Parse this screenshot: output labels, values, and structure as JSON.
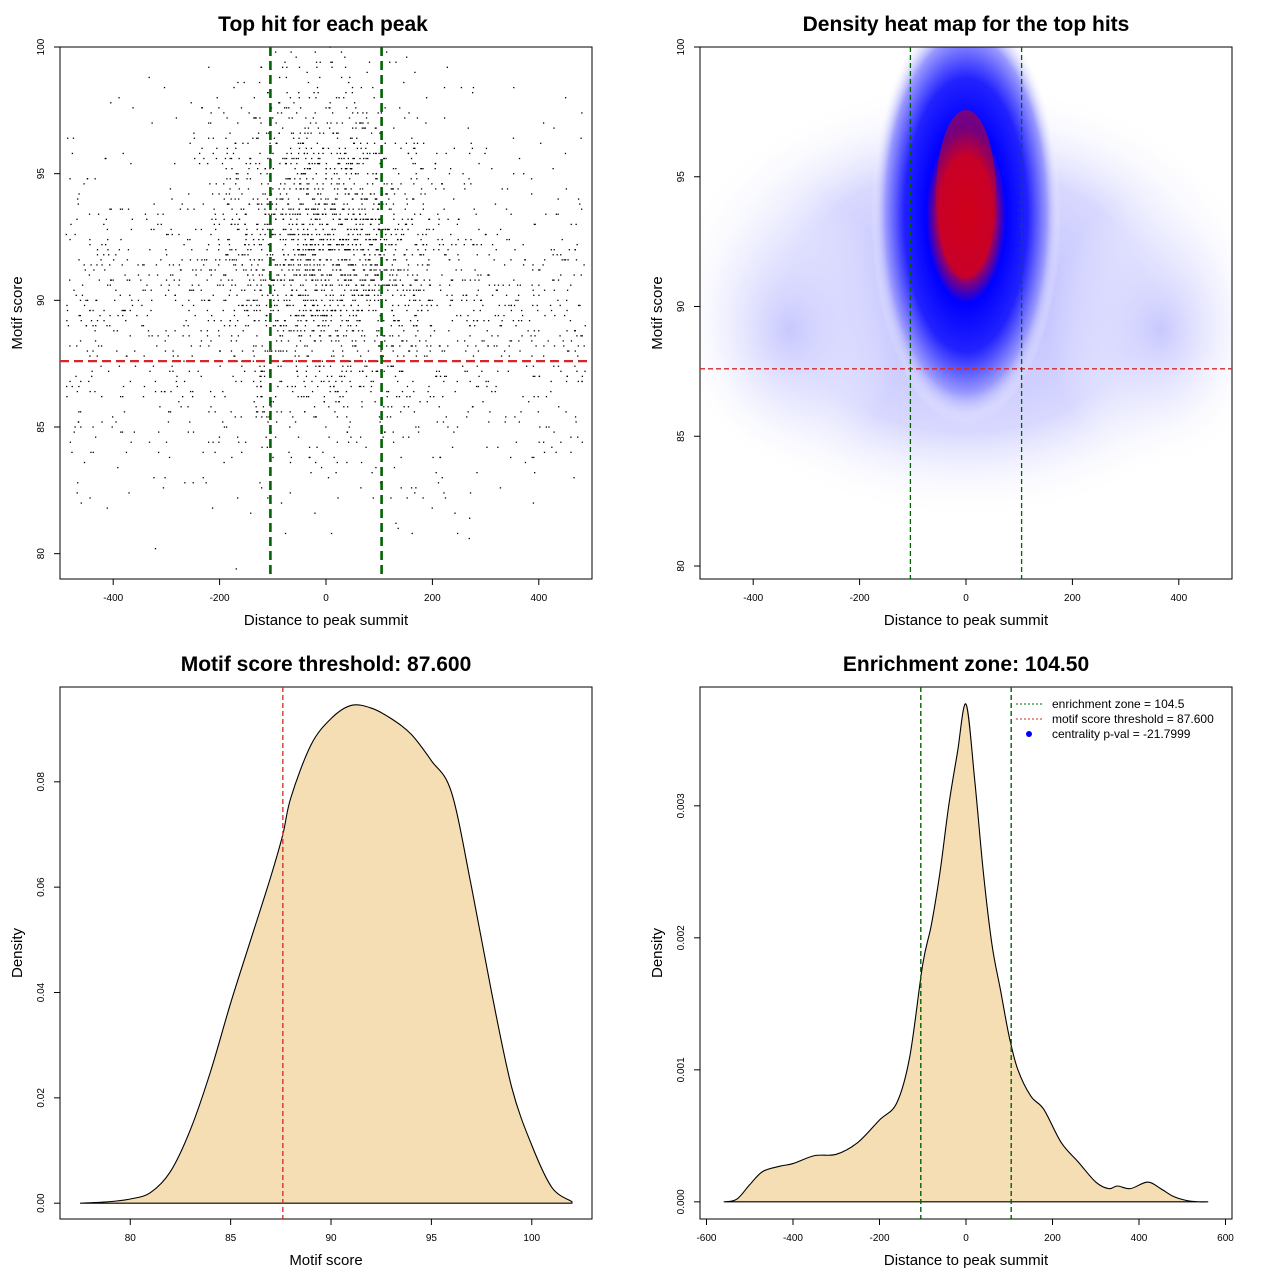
{
  "colors": {
    "points": "#000000",
    "threshold_line": "#d62728",
    "zone_line": "#006400",
    "density_fill": "#f5deb3",
    "heat_low": "#ffffff",
    "heat_mid": "#0000ff",
    "heat_high": "#cc0000",
    "legend_dot": "#0000ff"
  },
  "chart_data": [
    {
      "type": "scatter",
      "title": "Top hit for each peak",
      "xlabel": "Distance to peak summit",
      "ylabel": "Motif score",
      "xlim": [
        -500,
        500
      ],
      "ylim": [
        79,
        100
      ],
      "xticks": [
        -400,
        -200,
        0,
        200,
        400
      ],
      "yticks": [
        80,
        85,
        90,
        95,
        100
      ],
      "grid": false,
      "hlines": [
        87.6
      ],
      "vlines": [
        -104.5,
        104.5
      ],
      "point_distribution": {
        "count": 3000,
        "x_range": [
          -490,
          490
        ],
        "y_range": [
          79.4,
          100
        ],
        "x_center": 0,
        "x_spread": 110,
        "y_center": 91.5,
        "y_spread": 3.6
      }
    },
    {
      "type": "heatmap",
      "title": "Density heat map for the top hits",
      "xlabel": "Distance to peak summit",
      "ylabel": "Motif score",
      "xlim": [
        -500,
        500
      ],
      "ylim": [
        79.5,
        100
      ],
      "xticks": [
        -400,
        -200,
        0,
        200,
        400
      ],
      "yticks": [
        80,
        85,
        90,
        95,
        100
      ],
      "grid": false,
      "hlines": [
        87.6
      ],
      "vlines": [
        -104.5,
        104.5
      ],
      "density_peak": {
        "x": 0,
        "y": 93.8
      }
    },
    {
      "type": "area",
      "title": "Motif score threshold: 87.600",
      "xlabel": "Motif score",
      "ylabel": "Density",
      "xlim": [
        76.5,
        103
      ],
      "ylim": [
        -0.003,
        0.098
      ],
      "xticks": [
        80,
        85,
        90,
        95,
        100
      ],
      "yticks": [
        0.0,
        0.02,
        0.04,
        0.06,
        0.08
      ],
      "ytick_labels": [
        "0.00",
        "0.02",
        "0.04",
        "0.06",
        "0.08"
      ],
      "vlines": [
        87.6
      ],
      "x": [
        77.5,
        79,
        80,
        81,
        82,
        83,
        84,
        85,
        86,
        87,
        87.6,
        88,
        89,
        90,
        91,
        92,
        93,
        94,
        95,
        96,
        97,
        98,
        99,
        100,
        101,
        102
      ],
      "values": [
        0.0,
        0.0003,
        0.0008,
        0.002,
        0.006,
        0.014,
        0.025,
        0.038,
        0.05,
        0.062,
        0.07,
        0.077,
        0.087,
        0.092,
        0.0945,
        0.094,
        0.092,
        0.089,
        0.084,
        0.078,
        0.06,
        0.04,
        0.022,
        0.011,
        0.003,
        0.0003
      ]
    },
    {
      "type": "area",
      "title": "Enrichment zone: 104.50",
      "xlabel": "Distance to peak summit",
      "ylabel": "Density",
      "xlim": [
        -615,
        615
      ],
      "ylim": [
        -0.00013,
        0.0039
      ],
      "xticks": [
        -600,
        -400,
        -200,
        0,
        200,
        400,
        600
      ],
      "yticks": [
        0.0,
        0.001,
        0.002,
        0.003
      ],
      "ytick_labels": [
        "0.000",
        "0.001",
        "0.002",
        "0.003"
      ],
      "vlines": [
        -104.5,
        104.5
      ],
      "x": [
        -560,
        -530,
        -500,
        -470,
        -430,
        -400,
        -350,
        -300,
        -250,
        -200,
        -160,
        -130,
        -100,
        -80,
        -60,
        -40,
        -20,
        0,
        20,
        40,
        60,
        80,
        100,
        120,
        150,
        180,
        220,
        260,
        300,
        330,
        350,
        380,
        420,
        450,
        480,
        510,
        540,
        560
      ],
      "values": [
        0.0,
        2e-05,
        0.00013,
        0.00023,
        0.00027,
        0.00029,
        0.00035,
        0.00036,
        0.00045,
        0.00062,
        0.00075,
        0.0011,
        0.0018,
        0.0021,
        0.0025,
        0.003,
        0.0034,
        0.00377,
        0.0032,
        0.0025,
        0.00195,
        0.0016,
        0.00125,
        0.001,
        0.0008,
        0.0007,
        0.00045,
        0.0003,
        0.00015,
        0.0001,
        0.00012,
        0.0001,
        0.00015,
        0.0001,
        4e-05,
        1e-05,
        0.0,
        0.0
      ],
      "legend": {
        "placement": "top-right",
        "items": [
          {
            "label": "enrichment zone = 104.5",
            "style": "dotted-line",
            "color": "#006400"
          },
          {
            "label": "motif score threshold = 87.600",
            "style": "dotted-line",
            "color": "#d62728"
          },
          {
            "label": "centrality p-val = -21.7999",
            "style": "dot",
            "color": "#0000ff"
          }
        ]
      }
    }
  ]
}
